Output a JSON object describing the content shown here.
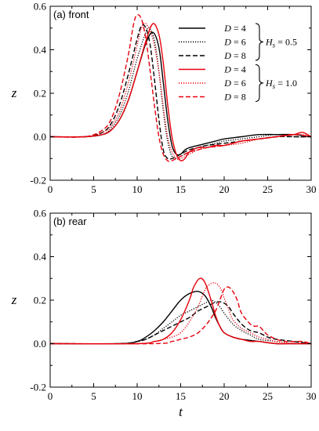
{
  "chart_data": [
    {
      "type": "line",
      "panel_label": "(a) front",
      "xlabel": "",
      "ylabel": "z",
      "xlim": [
        0,
        30
      ],
      "ylim": [
        -0.2,
        0.6
      ],
      "xticks": [
        0,
        5,
        10,
        15,
        20,
        25,
        30
      ],
      "yticks": [
        -0.2,
        0.0,
        0.2,
        0.4,
        0.6
      ],
      "xtick_labels": [
        "0",
        "5",
        "10",
        "15",
        "20",
        "25",
        "30"
      ],
      "ytick_labels": [
        "-0.2",
        "0.0",
        "0.2",
        "0.4",
        "0.6"
      ],
      "grid": false,
      "legend": {
        "placement": "top-right",
        "entries": [
          {
            "var": "D",
            "eq": " = ",
            "val": "4",
            "color": "#000000",
            "dash": "solid"
          },
          {
            "var": "D",
            "eq": " = ",
            "val": "6",
            "color": "#000000",
            "dash": "dotted"
          },
          {
            "var": "D",
            "eq": " = ",
            "val": "8",
            "color": "#000000",
            "dash": "dashed"
          },
          {
            "var": "D",
            "eq": " = ",
            "val": "4",
            "color": "#e8000b",
            "dash": "solid"
          },
          {
            "var": "D",
            "eq": " = ",
            "val": "6",
            "color": "#e8000b",
            "dash": "dotted"
          },
          {
            "var": "D",
            "eq": " = ",
            "val": "8",
            "color": "#e8000b",
            "dash": "dashed"
          }
        ],
        "groups": [
          {
            "var": "H",
            "sub": "s",
            "eq": " = ",
            "val": "0.5"
          },
          {
            "var": "H",
            "sub": "s",
            "eq": " = ",
            "val": "1.0"
          }
        ]
      },
      "series": [
        {
          "color": "#000000",
          "dash": "solid",
          "x": [
            0,
            4,
            6,
            7,
            8,
            9,
            10,
            11,
            11.8,
            12.5,
            13,
            13.5,
            14,
            14.5,
            15,
            15.5,
            16,
            17,
            18,
            19,
            20,
            22,
            24,
            26,
            28,
            30
          ],
          "y": [
            0,
            0,
            0.01,
            0.03,
            0.08,
            0.17,
            0.3,
            0.43,
            0.48,
            0.41,
            0.25,
            0.08,
            -0.04,
            -0.08,
            -0.08,
            -0.06,
            -0.05,
            -0.04,
            -0.03,
            -0.02,
            -0.01,
            0,
            0.01,
            0.01,
            0.01,
            0
          ]
        },
        {
          "color": "#000000",
          "dash": "dotted",
          "x": [
            0,
            4,
            6,
            7,
            8,
            9,
            10,
            11,
            11.4,
            12,
            12.5,
            13,
            13.5,
            14,
            14.5,
            15,
            16,
            17,
            18,
            19,
            20,
            22,
            24,
            26,
            28,
            30
          ],
          "y": [
            0,
            0,
            0.01,
            0.04,
            0.1,
            0.21,
            0.36,
            0.48,
            0.5,
            0.44,
            0.3,
            0.12,
            -0.02,
            -0.09,
            -0.1,
            -0.09,
            -0.07,
            -0.05,
            -0.04,
            -0.03,
            -0.02,
            -0.01,
            0,
            0.01,
            0,
            0
          ]
        },
        {
          "color": "#000000",
          "dash": "dashed",
          "x": [
            0,
            4,
            6,
            7,
            8,
            9,
            10,
            10.5,
            11,
            11.5,
            12,
            12.5,
            13,
            13.5,
            14,
            15,
            16,
            17,
            18,
            20,
            22,
            24,
            26,
            28,
            30
          ],
          "y": [
            0,
            0,
            0.02,
            0.06,
            0.15,
            0.29,
            0.45,
            0.51,
            0.5,
            0.42,
            0.26,
            0.08,
            -0.06,
            -0.1,
            -0.1,
            -0.08,
            -0.06,
            -0.05,
            -0.04,
            -0.03,
            -0.02,
            -0.01,
            0,
            0,
            0
          ]
        },
        {
          "color": "#e8000b",
          "dash": "solid",
          "x": [
            0,
            4,
            6,
            7,
            8,
            9,
            10,
            11,
            11.8,
            12.5,
            13,
            13.5,
            14,
            14.5,
            15,
            15.5,
            16,
            17,
            18,
            19,
            20,
            21,
            22,
            24,
            26,
            28,
            29,
            30
          ],
          "y": [
            0,
            0,
            0.01,
            0.03,
            0.08,
            0.17,
            0.3,
            0.44,
            0.52,
            0.47,
            0.34,
            0.15,
            0.0,
            -0.08,
            -0.11,
            -0.1,
            -0.07,
            -0.05,
            -0.05,
            -0.04,
            -0.04,
            -0.03,
            -0.02,
            -0.01,
            0,
            0.01,
            0.02,
            0
          ]
        },
        {
          "color": "#e8000b",
          "dash": "dotted",
          "x": [
            0,
            4,
            6,
            7,
            8,
            9,
            10,
            10.5,
            11,
            11.8,
            12.5,
            13,
            13.5,
            14,
            14.5,
            15,
            16,
            17,
            18,
            20,
            22,
            24,
            26,
            28,
            29,
            30
          ],
          "y": [
            0,
            0,
            0.02,
            0.05,
            0.12,
            0.25,
            0.42,
            0.5,
            0.52,
            0.45,
            0.3,
            0.14,
            0,
            -0.07,
            -0.1,
            -0.1,
            -0.08,
            -0.06,
            -0.05,
            -0.04,
            -0.03,
            -0.01,
            0,
            0.01,
            0.01,
            0
          ]
        },
        {
          "color": "#e8000b",
          "dash": "dashed",
          "x": [
            0,
            4,
            6,
            7,
            8,
            9,
            9.6,
            10,
            10.5,
            11,
            11.5,
            12,
            12.5,
            13,
            13.5,
            14,
            15,
            16,
            17,
            18,
            20,
            22,
            24,
            26,
            28,
            30
          ],
          "y": [
            0,
            0,
            0.03,
            0.08,
            0.2,
            0.38,
            0.52,
            0.56,
            0.54,
            0.45,
            0.3,
            0.14,
            0,
            -0.08,
            -0.11,
            -0.11,
            -0.09,
            -0.07,
            -0.06,
            -0.05,
            -0.04,
            -0.02,
            -0.01,
            0,
            0.01,
            0
          ]
        }
      ]
    },
    {
      "type": "line",
      "panel_label": "(b) rear",
      "xlabel": "t",
      "ylabel": "z",
      "xlim": [
        0,
        30
      ],
      "ylim": [
        -0.2,
        0.6
      ],
      "xticks": [
        0,
        5,
        10,
        15,
        20,
        25,
        30
      ],
      "yticks": [
        -0.2,
        0.0,
        0.2,
        0.4,
        0.6
      ],
      "xtick_labels": [
        "0",
        "5",
        "10",
        "15",
        "20",
        "25",
        "30"
      ],
      "ytick_labels": [
        "-0.2",
        "0.0",
        "0.2",
        "0.4",
        "0.6"
      ],
      "grid": false,
      "series": [
        {
          "color": "#000000",
          "dash": "solid",
          "x": [
            0,
            8,
            10,
            11,
            12,
            13,
            14,
            15,
            16,
            17,
            17.8,
            18.5,
            19,
            19.5,
            20,
            21,
            22,
            24,
            26,
            28,
            30
          ],
          "y": [
            0,
            0,
            0.01,
            0.03,
            0.06,
            0.1,
            0.15,
            0.2,
            0.23,
            0.24,
            0.22,
            0.17,
            0.12,
            0.08,
            0.05,
            0.03,
            0.02,
            0.01,
            0,
            0,
            0
          ]
        },
        {
          "color": "#000000",
          "dash": "dotted",
          "x": [
            0,
            8,
            10,
            11,
            12,
            13,
            14,
            15,
            16,
            17,
            18,
            18.5,
            19,
            19.5,
            20,
            21,
            22,
            23,
            24,
            26,
            28,
            30
          ],
          "y": [
            0,
            0,
            0.01,
            0.02,
            0.04,
            0.07,
            0.1,
            0.13,
            0.15,
            0.17,
            0.19,
            0.2,
            0.19,
            0.17,
            0.14,
            0.09,
            0.06,
            0.04,
            0.02,
            0.01,
            0,
            0
          ]
        },
        {
          "color": "#000000",
          "dash": "dashed",
          "x": [
            0,
            8,
            10,
            11,
            12,
            13,
            14,
            15,
            16,
            17,
            18,
            19,
            19.8,
            20.5,
            21,
            22,
            23,
            24,
            25,
            26,
            28,
            30
          ],
          "y": [
            0,
            0,
            0.01,
            0.02,
            0.04,
            0.06,
            0.08,
            0.1,
            0.12,
            0.15,
            0.17,
            0.19,
            0.19,
            0.17,
            0.14,
            0.09,
            0.06,
            0.05,
            0.03,
            0.02,
            0.01,
            0
          ]
        },
        {
          "color": "#e8000b",
          "dash": "solid",
          "x": [
            0,
            10,
            12,
            13,
            14,
            15,
            16,
            16.5,
            17.2,
            17.8,
            18.5,
            19,
            19.5,
            20,
            21,
            22,
            23,
            24,
            26,
            28,
            30
          ],
          "y": [
            0,
            0,
            0.01,
            0.02,
            0.05,
            0.11,
            0.2,
            0.26,
            0.3,
            0.28,
            0.2,
            0.13,
            0.08,
            0.05,
            0.03,
            0.02,
            0.01,
            0.01,
            0,
            0,
            0
          ]
        },
        {
          "color": "#e8000b",
          "dash": "dotted",
          "x": [
            0,
            10,
            12,
            13,
            14,
            15,
            16,
            17,
            17.5,
            18,
            18.8,
            19.5,
            20,
            20.5,
            21,
            22,
            23,
            24,
            25,
            26,
            28,
            30
          ],
          "y": [
            0,
            0,
            0.01,
            0.02,
            0.03,
            0.05,
            0.1,
            0.17,
            0.22,
            0.26,
            0.28,
            0.26,
            0.21,
            0.16,
            0.11,
            0.07,
            0.05,
            0.03,
            0.02,
            0.01,
            0,
            0
          ]
        },
        {
          "color": "#e8000b",
          "dash": "dashed",
          "x": [
            0,
            12,
            14,
            15,
            16,
            17,
            18,
            19,
            19.5,
            20,
            20.5,
            21,
            21.5,
            22,
            23,
            23.5,
            24,
            24.5,
            25,
            26,
            27,
            28,
            29,
            30
          ],
          "y": [
            0,
            0,
            0.01,
            0.02,
            0.03,
            0.05,
            0.09,
            0.15,
            0.2,
            0.25,
            0.26,
            0.24,
            0.2,
            0.14,
            0.09,
            0.08,
            0.08,
            0.06,
            0.04,
            0.02,
            0.01,
            0.01,
            0.01,
            0
          ]
        }
      ]
    }
  ]
}
